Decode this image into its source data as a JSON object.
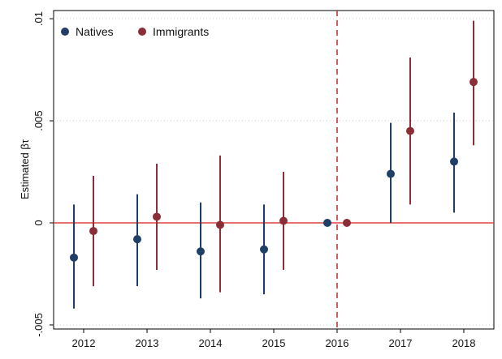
{
  "chart_data": {
    "type": "scatter",
    "title": "",
    "xlabel": "",
    "ylabel": "Estimated βτ",
    "categories": [
      "2012",
      "2013",
      "2014",
      "2015",
      "2016",
      "2017",
      "2018"
    ],
    "ylim": [
      -0.0052,
      0.0104
    ],
    "yticks": [
      {
        "value": -0.005,
        "label": "-.005"
      },
      {
        "value": 0,
        "label": "0"
      },
      {
        "value": 0.005,
        "label": ".005"
      },
      {
        "value": 0.01,
        "label": ".01"
      }
    ],
    "reference_lines": {
      "horizontal_y": 0,
      "horizontal_color": "#e04040",
      "vertical_category": "2016",
      "vertical_color": "#c0282d",
      "vertical_style": "dashed"
    },
    "legend_position": "top-left",
    "grid": "horizontal-dotted",
    "series": [
      {
        "name": "Natives",
        "color": "#1f3f66",
        "values": [
          -0.0017,
          -0.0008,
          -0.0014,
          -0.0013,
          0.0,
          0.0024,
          0.003
        ],
        "ci_low": [
          -0.0042,
          -0.0031,
          -0.0037,
          -0.0035,
          0.0,
          0.0,
          0.0005
        ],
        "ci_high": [
          0.0009,
          0.0014,
          0.001,
          0.0009,
          0.0,
          0.0049,
          0.0054
        ]
      },
      {
        "name": "Immigrants",
        "color": "#8b2e38",
        "values": [
          -0.0004,
          0.0003,
          -0.0001,
          0.0001,
          0.0,
          0.0045,
          0.0069
        ],
        "ci_low": [
          -0.0031,
          -0.0023,
          -0.0034,
          -0.0023,
          0.0,
          0.0009,
          0.0038
        ],
        "ci_high": [
          0.0023,
          0.0029,
          0.0033,
          0.0025,
          0.0,
          0.0081,
          0.0099
        ]
      }
    ]
  }
}
